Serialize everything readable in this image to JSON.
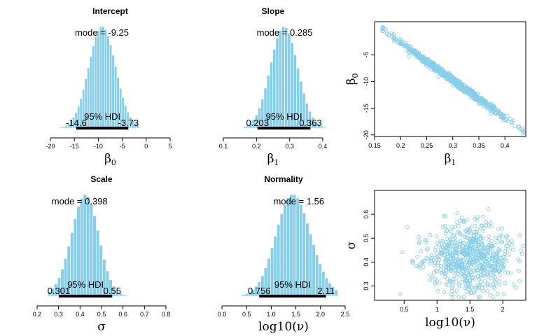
{
  "chart_data": [
    {
      "type": "bar",
      "title": "Intercept",
      "xlabel": "β",
      "xlabel_sub": "0",
      "xlim": [
        -20,
        5
      ],
      "xticks": [
        -20,
        -15,
        -10,
        -5,
        0,
        5
      ],
      "hist_mean": -9.2,
      "hist_sd": 2.8,
      "hist_range": [
        -18.5,
        -1.5
      ],
      "hist_bins": 33,
      "mode_label": "mode = -9.25",
      "mode": -9.25,
      "hdi_label": "95% HDI",
      "hdi": [
        -14.6,
        -3.73
      ],
      "hdi_low_label": "-14.6",
      "hdi_high_label": "-3.73"
    },
    {
      "type": "bar",
      "title": "Slope",
      "xlabel": "β",
      "xlabel_sub": "1",
      "xlim": [
        0.1,
        0.4
      ],
      "xticks": [
        0.1,
        0.2,
        0.3,
        0.4
      ],
      "hist_mean": 0.283,
      "hist_sd": 0.041,
      "hist_range": [
        0.16,
        0.41
      ],
      "hist_bins": 28,
      "mode_label": "mode = 0.285",
      "mode": 0.285,
      "hdi_label": "95% HDI",
      "hdi": [
        0.203,
        0.363
      ],
      "hdi_low_label": "0.203",
      "hdi_high_label": "0.363"
    },
    {
      "type": "scatter",
      "xlabel": "β",
      "xlabel_sub": "1",
      "ylabel": "β",
      "ylabel_sub": "0",
      "xlim": [
        0.15,
        0.44
      ],
      "ylim": [
        -20.3,
        1.2
      ],
      "xticks": [
        0.15,
        0.2,
        0.25,
        0.3,
        0.35,
        0.4
      ],
      "yticks": [
        -20,
        -15,
        -10,
        -5
      ],
      "trend": {
        "x0": 0.165,
        "y0": -0.2,
        "x1": 0.435,
        "y1": -19.3
      },
      "spread": 0.35
    },
    {
      "type": "bar",
      "title": "Scale",
      "xlabel": "σ",
      "xlabel_sub": "",
      "xlim": [
        0.2,
        0.8
      ],
      "xticks": [
        0.2,
        0.3,
        0.4,
        0.5,
        0.6,
        0.7,
        0.8
      ],
      "hist_mean": 0.412,
      "hist_sd": 0.065,
      "hist_range": [
        0.25,
        0.7
      ],
      "hist_bins": 30,
      "hist_skew": 0.6,
      "mode_label": "mode = 0.398",
      "mode": 0.398,
      "hdi_label": "95% HDI",
      "hdi": [
        0.301,
        0.55
      ],
      "hdi_low_label": "0.301",
      "hdi_high_label": "0.55"
    },
    {
      "type": "bar",
      "title": "Normality",
      "xlabel": "log10(ν)",
      "xlabel_sub": "",
      "xlim": [
        0,
        2.5
      ],
      "xticks": [
        0.0,
        0.5,
        1.0,
        1.5,
        2.0,
        2.5
      ],
      "hist_mean": 1.5,
      "hist_sd": 0.36,
      "hist_range": [
        0.4,
        2.35
      ],
      "hist_bins": 30,
      "hist_skew": -0.5,
      "mode_label": "mode = 1.56",
      "mode": 1.56,
      "hdi_label": "95% HDI",
      "hdi": [
        0.756,
        2.11
      ],
      "hdi_low_label": "0.756",
      "hdi_high_label": "2.11"
    },
    {
      "type": "scatter",
      "xlabel": "log10(ν)",
      "xlabel_sub": "",
      "ylabel": "σ",
      "ylabel_sub": "",
      "xlim": [
        0.05,
        2.35
      ],
      "ylim": [
        0.24,
        0.7
      ],
      "xticks": [
        0.5,
        1.0,
        1.5,
        2.0
      ],
      "yticks": [
        0.3,
        0.4,
        0.5,
        0.6
      ],
      "cloud": {
        "cx": 1.5,
        "cy": 0.415,
        "sx": 0.33,
        "sy": 0.065
      }
    }
  ]
}
